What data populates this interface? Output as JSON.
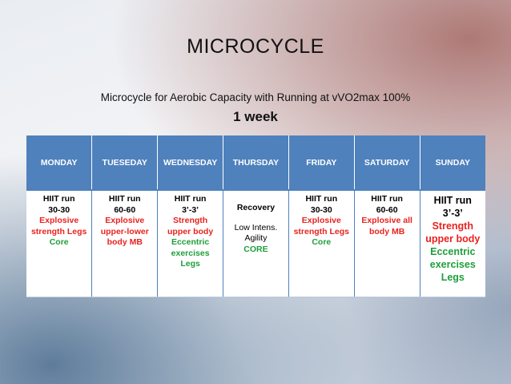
{
  "title": "MICROCYCLE",
  "subtitle": "Microcycle for Aerobic Capacity with Running at vVO2max 100%",
  "duration": "1 week",
  "days": [
    "MONDAY",
    "TUESEDAY",
    "WEDNESDAY",
    "THURSDAY",
    "FRIDAY",
    "SATURDAY",
    "SUNDAY"
  ],
  "cells": {
    "monday": [
      "HIIT run",
      "30-30",
      "Explosive",
      "strength Legs",
      "Core"
    ],
    "tuesday": [
      "HIIT run",
      "60-60",
      "Explosive",
      "upper-lower",
      "body MB"
    ],
    "wednesday": [
      "HIIT run",
      "3’-3’",
      "Strength",
      "upper body",
      "Eccentric",
      "exercises",
      "Legs"
    ],
    "thursday": [
      "Recovery",
      "Low Intens.",
      "Agility",
      "CORE"
    ],
    "friday": [
      "HIIT run",
      "30-30",
      "Explosive",
      "strength Legs",
      "Core"
    ],
    "saturday": [
      "HIIT run",
      "60-60",
      "Explosive all",
      "body MB"
    ],
    "sunday": [
      "HIIT run",
      "3’-3’",
      "Strength",
      "upper body",
      "Eccentric",
      "exercises",
      "Legs"
    ]
  },
  "colors": {
    "header_bg": "#4f81bd",
    "red_text": "#e8231f",
    "green_text": "#1f9e3a"
  }
}
